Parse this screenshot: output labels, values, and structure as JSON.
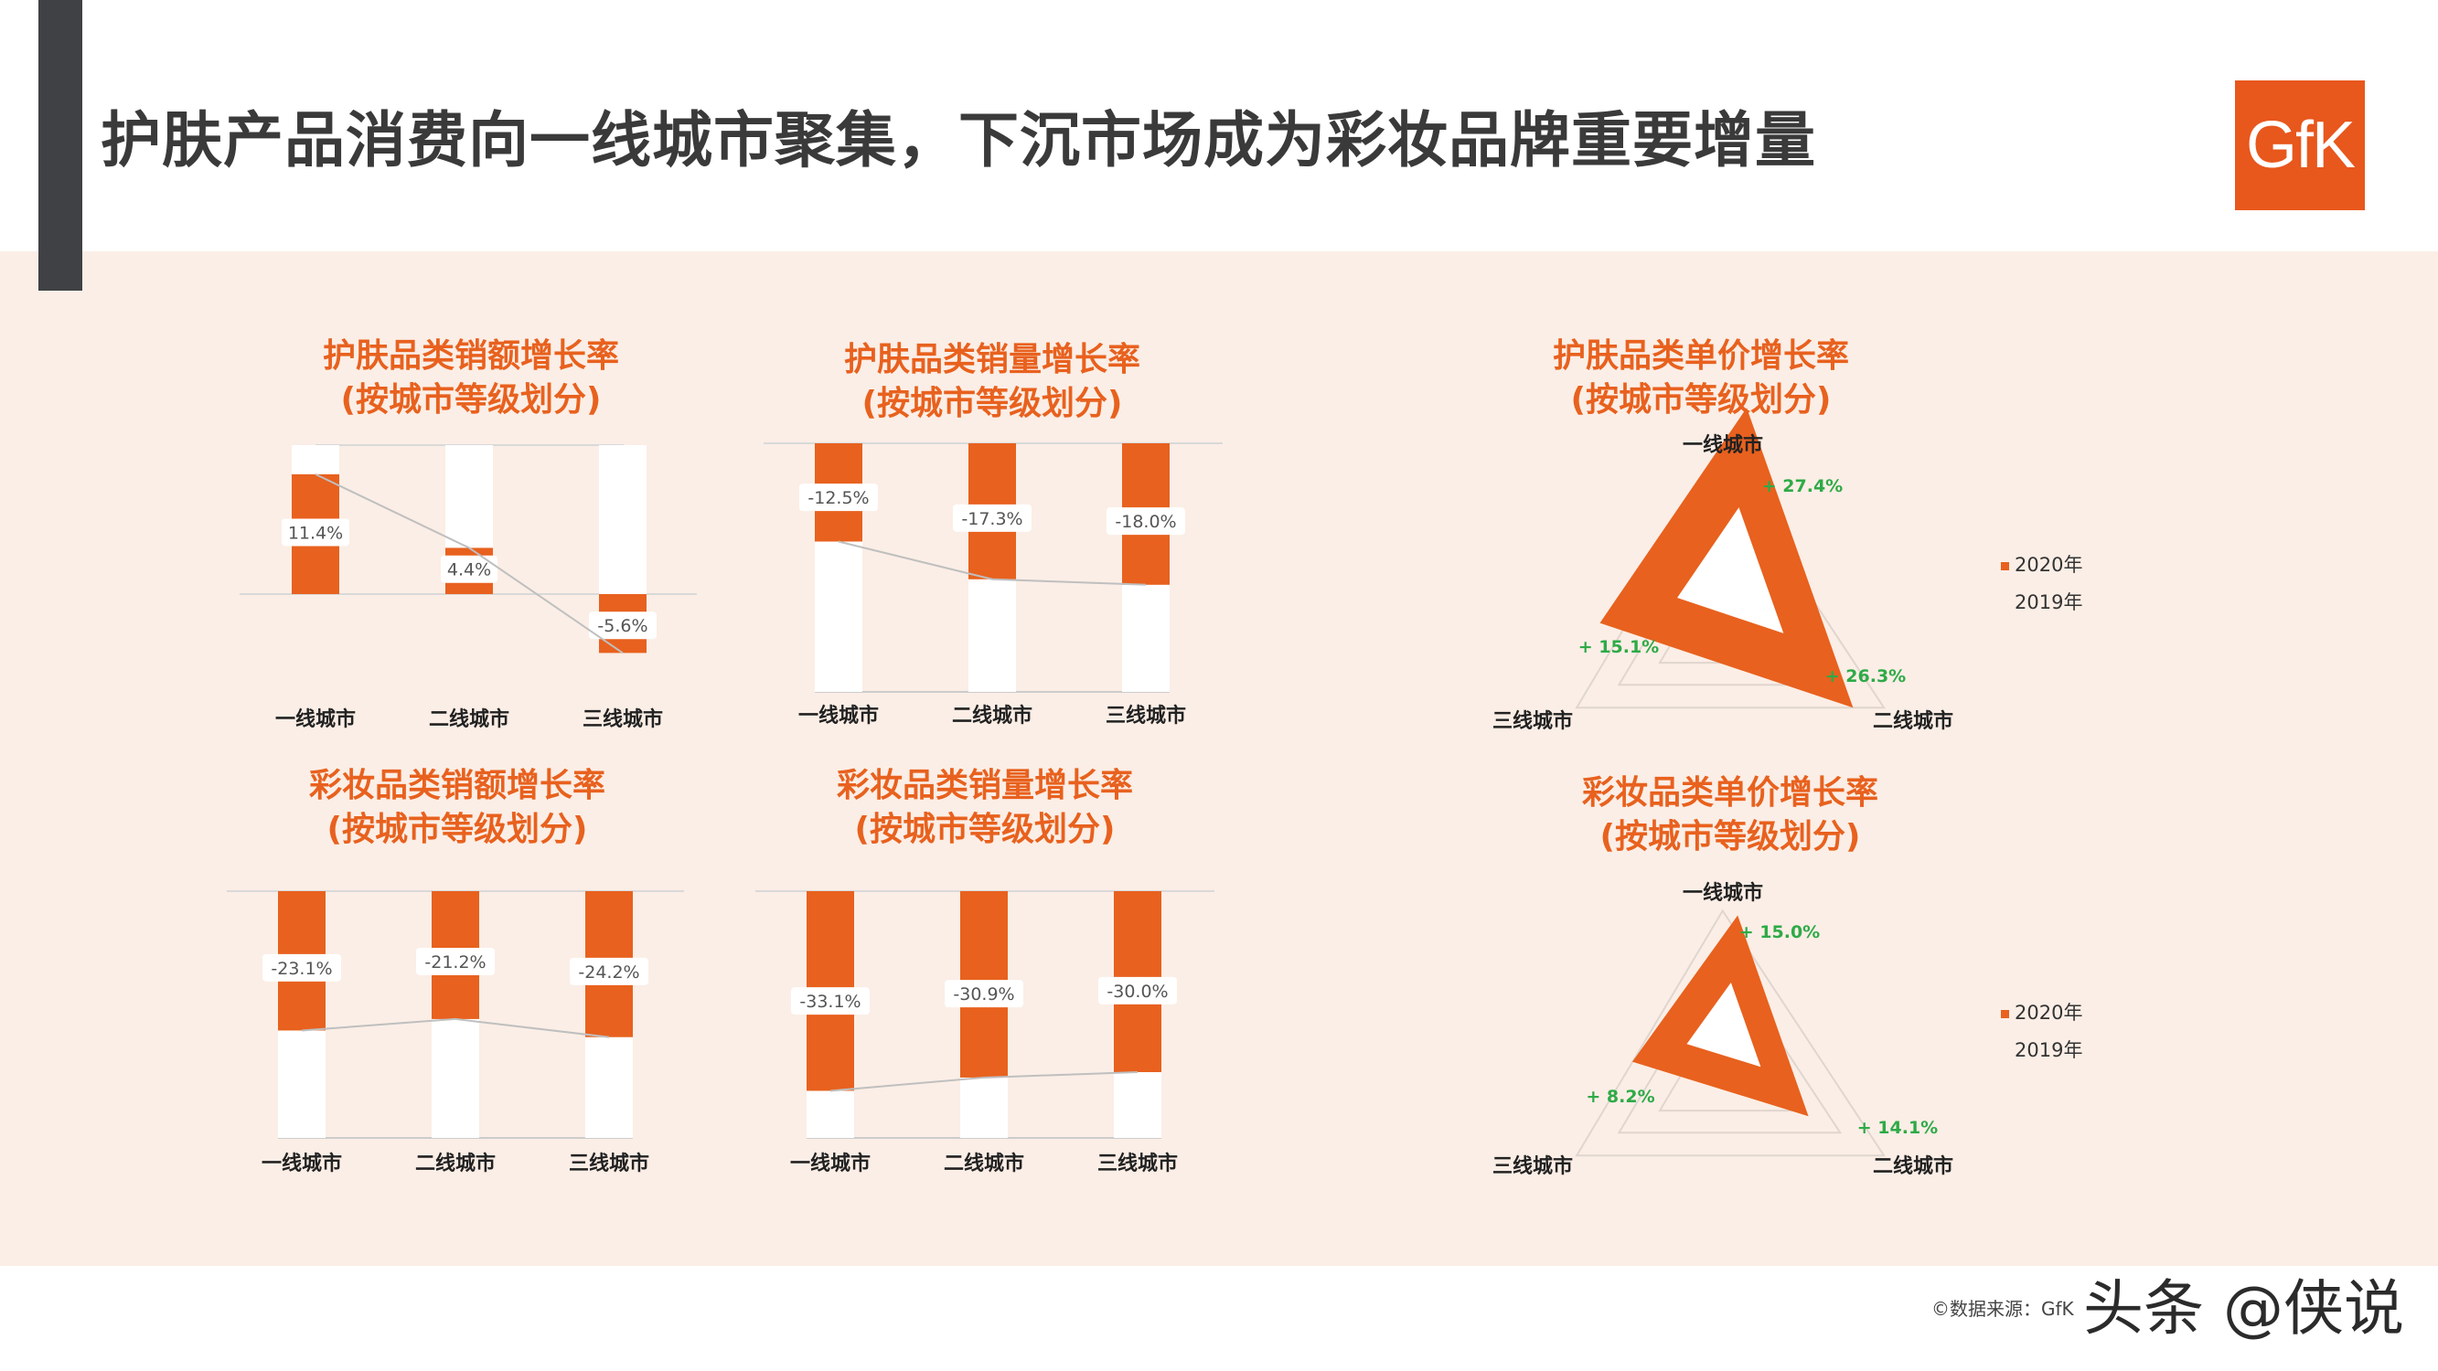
{
  "title": "护肤产品消费向一线城市聚集，下沉市场成为彩妆品牌重要增量",
  "logo": "GfK",
  "colors": {
    "accent": "#e8611e",
    "positive": "#2eaa47",
    "dark": "#3f4144",
    "band": "#fbeee6"
  },
  "source": "©数据来源：GfK",
  "watermark": "头条 @侠说",
  "chart_data": [
    {
      "type": "bar",
      "title": "护肤品类销额增长率",
      "subtitle": "(按城市等级划分)",
      "categories": [
        "一线城市",
        "二线城市",
        "三线城市"
      ],
      "values": [
        11.4,
        4.4,
        -5.6
      ],
      "labels": [
        "11.4%",
        "4.4%",
        "-5.6%"
      ]
    },
    {
      "type": "bar",
      "title": "护肤品类销量增长率",
      "subtitle": "(按城市等级划分)",
      "categories": [
        "一线城市",
        "二线城市",
        "三线城市"
      ],
      "values": [
        -12.5,
        -17.3,
        -18.0
      ],
      "labels": [
        "-12.5%",
        "-17.3%",
        "-18.0%"
      ]
    },
    {
      "type": "bar",
      "title": "彩妆品类销额增长率",
      "subtitle": "(按城市等级划分)",
      "categories": [
        "一线城市",
        "二线城市",
        "三线城市"
      ],
      "values": [
        -23.1,
        -21.2,
        -24.2
      ],
      "labels": [
        "-23.1%",
        "-21.2%",
        "-24.2%"
      ]
    },
    {
      "type": "bar",
      "title": "彩妆品类销量增长率",
      "subtitle": "(按城市等级划分)",
      "categories": [
        "一线城市",
        "二线城市",
        "三线城市"
      ],
      "values": [
        -33.1,
        -30.9,
        -30.0
      ],
      "labels": [
        "-33.1%",
        "-30.9%",
        "-30.0%"
      ]
    },
    {
      "type": "radar",
      "title": "护肤品类单价增长率",
      "subtitle": "(按城市等级划分)",
      "axes": [
        "一线城市",
        "二线城市",
        "三线城市"
      ],
      "values": [
        27.4,
        26.3,
        15.1
      ],
      "labels": [
        "+ 27.4%",
        "+ 26.3%",
        "+ 15.1%"
      ],
      "legend": [
        "2020年",
        "2019年"
      ]
    },
    {
      "type": "radar",
      "title": "彩妆品类单价增长率",
      "subtitle": "(按城市等级划分)",
      "axes": [
        "一线城市",
        "二线城市",
        "三线城市"
      ],
      "values": [
        15.0,
        14.1,
        8.2
      ],
      "labels": [
        "+ 15.0%",
        "+ 14.1%",
        "+ 8.2%"
      ],
      "legend": [
        "2020年",
        "2019年"
      ]
    }
  ]
}
